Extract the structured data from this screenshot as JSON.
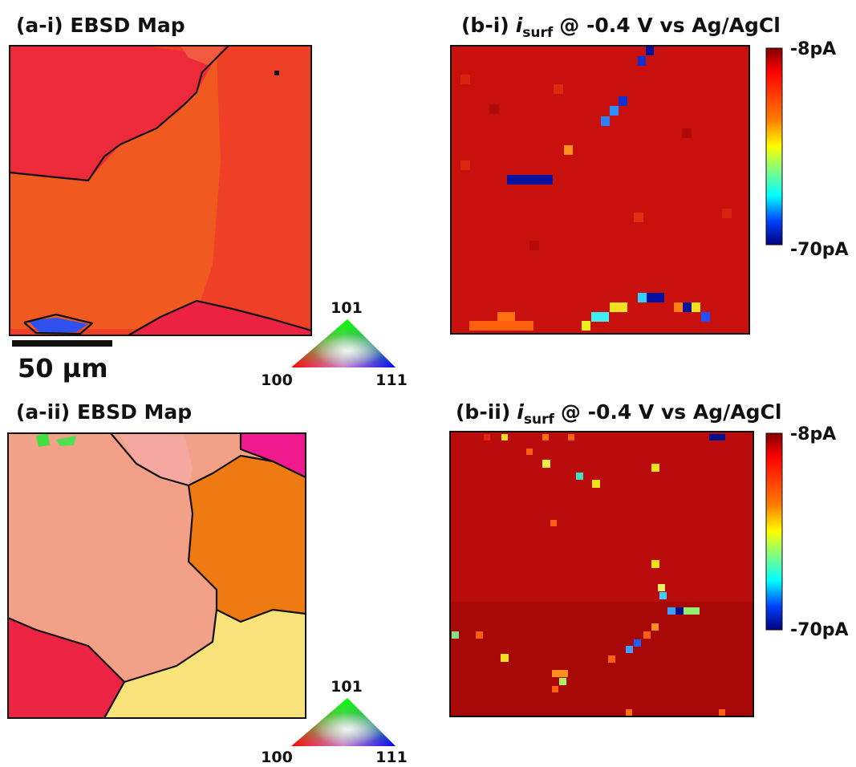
{
  "panels": [
    {
      "title": "(a-i) EBSD Map",
      "scale_bar": "50 µm",
      "ipf": {
        "top": "101",
        "left": "100",
        "right": "111"
      }
    },
    {
      "title": {
        "prefix": "(b-i)",
        "symbol": "i",
        "subscript": "surf",
        "condition": "@ -0.4 V vs Ag/AgCl"
      },
      "colorbar": {
        "top": "-8pA",
        "bottom": "-70pA"
      }
    },
    {
      "title": "(a-ii) EBSD Map",
      "ipf": {
        "top": "101",
        "left": "100",
        "right": "111"
      }
    },
    {
      "title": {
        "prefix": "(b-ii)",
        "symbol": "i",
        "subscript": "surf",
        "condition": "@ -0.4 V vs Ag/AgCl"
      },
      "colorbar": {
        "top": "-8pA",
        "bottom": "-70pA"
      }
    }
  ]
}
